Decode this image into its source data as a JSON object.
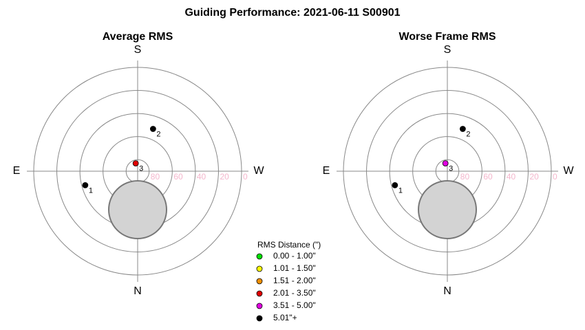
{
  "title": "Guiding Performance: 2021-06-11 S00901",
  "chart_data": [
    {
      "type": "polar",
      "title": "Average RMS",
      "directions": {
        "top": "S",
        "bottom": "N",
        "left": "E",
        "right": "W"
      },
      "rlim": [
        90,
        0
      ],
      "rticks": [
        80,
        60,
        40,
        20,
        0
      ],
      "points": [
        {
          "label": "1",
          "azimuth": 75,
          "altitude": 43,
          "color": "#000000"
        },
        {
          "label": "2",
          "azimuth": 200,
          "altitude": 51,
          "color": "#000000"
        },
        {
          "label": "3",
          "azimuth": 166,
          "altitude": 83,
          "color": "#e00000"
        }
      ]
    },
    {
      "type": "polar",
      "title": "Worse Frame RMS",
      "directions": {
        "top": "S",
        "bottom": "N",
        "left": "E",
        "right": "W"
      },
      "rlim": [
        90,
        0
      ],
      "rticks": [
        80,
        60,
        40,
        20,
        0
      ],
      "points": [
        {
          "label": "1",
          "azimuth": 75,
          "altitude": 43,
          "color": "#000000"
        },
        {
          "label": "2",
          "azimuth": 200,
          "altitude": 51,
          "color": "#000000"
        },
        {
          "label": "3",
          "azimuth": 166,
          "altitude": 83,
          "color": "#e000e0"
        }
      ]
    }
  ],
  "legend": {
    "title": "RMS Distance (\")",
    "items": [
      {
        "label": "0.00 - 1.00\"",
        "color": "#00e000"
      },
      {
        "label": "1.01 - 1.50\"",
        "color": "#ffff00"
      },
      {
        "label": "1.51 - 2.00\"",
        "color": "#f09000"
      },
      {
        "label": "2.01 - 3.50\"",
        "color": "#e00000"
      },
      {
        "label": "3.51 - 5.00\"",
        "color": "#e000e0"
      },
      {
        "label": "5.01\"+",
        "color": "#000000"
      }
    ]
  }
}
